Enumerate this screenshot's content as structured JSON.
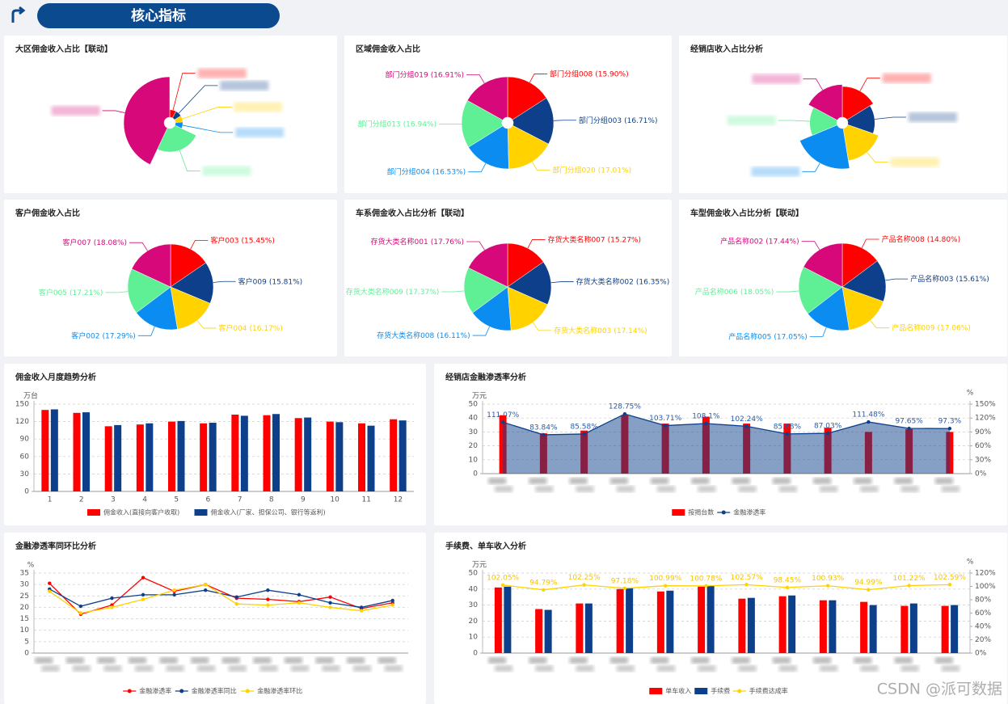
{
  "header": {
    "title": "核心指标"
  },
  "watermark": "CSDN @派可数据",
  "chart_data": [
    {
      "type": "pie",
      "title": "大区佣金收入占比【联动】",
      "rose": true,
      "donut": true,
      "categories": [
        null,
        null,
        null,
        null,
        null,
        null
      ],
      "values": [
        8,
        8,
        8,
        8,
        25,
        43
      ],
      "colors": [
        "#ff0000",
        "#0e3f8a",
        "#ffd200",
        "#0b8cf0",
        "#5ff095",
        "#d6087a"
      ]
    },
    {
      "type": "pie",
      "title": "区域佣金收入占比",
      "donut": true,
      "categories": [
        "部门分组008",
        "部门分组003",
        "部门分组020",
        "部门分组004",
        "部门分组013",
        "部门分组019"
      ],
      "values": [
        15.9,
        16.71,
        17.01,
        16.53,
        16.94,
        16.91
      ],
      "value_labels": [
        "(15.90%)",
        "(16.71%)",
        "(17.01%)",
        "(16.53%)",
        "(16.94%)",
        "(16.91%)"
      ],
      "colors": [
        "#ff0000",
        "#0e3f8a",
        "#ffd200",
        "#0b8cf0",
        "#5ff095",
        "#d6087a"
      ]
    },
    {
      "type": "pie",
      "title": "经销店收入占比分析",
      "rose": true,
      "donut": true,
      "categories": [
        null,
        null,
        null,
        null,
        null,
        null
      ],
      "values": [
        16,
        14,
        17,
        21,
        14,
        17
      ],
      "colors": [
        "#ff0000",
        "#0e3f8a",
        "#ffd200",
        "#0b8cf0",
        "#5ff095",
        "#d6087a"
      ]
    },
    {
      "type": "pie",
      "title": "客户佣金收入占比",
      "categories": [
        "客户003",
        "客户009",
        "客户004",
        "客户002",
        "客户005",
        "客户007"
      ],
      "values": [
        15.45,
        15.81,
        16.17,
        17.29,
        17.21,
        18.08
      ],
      "value_labels": [
        "(15.45%)",
        "(15.81%)",
        "(16.17%)",
        "(17.29%)",
        "(17.21%)",
        "(18.08%)"
      ],
      "colors": [
        "#ff0000",
        "#0e3f8a",
        "#ffd200",
        "#0b8cf0",
        "#5ff095",
        "#d6087a"
      ]
    },
    {
      "type": "pie",
      "title": "车系佣金收入占比分析【联动】",
      "categories": [
        "存货大类名称007",
        "存货大类名称002",
        "存货大类名称003",
        "存货大类名称008",
        "存货大类名称009",
        "存货大类名称001"
      ],
      "values": [
        15.27,
        16.35,
        17.14,
        16.11,
        17.37,
        17.76
      ],
      "value_labels": [
        "(15.27%)",
        "(16.35%)",
        "(17.14%)",
        "(16.11%)",
        "(17.37%)",
        "(17.76%)"
      ],
      "colors": [
        "#ff0000",
        "#0e3f8a",
        "#ffd200",
        "#0b8cf0",
        "#5ff095",
        "#d6087a"
      ]
    },
    {
      "type": "pie",
      "title": "车型佣金收入占比分析【联动】",
      "categories": [
        "产品名称008",
        "产品名称003",
        "产品名称009",
        "产品名称005",
        "产品名称006",
        "产品名称002"
      ],
      "values": [
        14.8,
        15.61,
        17.06,
        17.05,
        18.05,
        17.44
      ],
      "value_labels": [
        "(14.80%)",
        "(15.61%)",
        "(17.06%)",
        "(17.05%)",
        "(18.05%)",
        "(17.44%)"
      ],
      "colors": [
        "#ff0000",
        "#0e3f8a",
        "#ffd200",
        "#0b8cf0",
        "#5ff095",
        "#d6087a"
      ]
    },
    {
      "type": "bar",
      "title": "佣金收入月度趋势分析",
      "ylabel": "万台",
      "categories": [
        1,
        2,
        3,
        4,
        5,
        6,
        7,
        8,
        9,
        10,
        11,
        12
      ],
      "ylim": [
        0,
        150
      ],
      "yticks": [
        0,
        30,
        60,
        90,
        120,
        150
      ],
      "grid": true,
      "series": [
        {
          "name": "佣金收入(直接向客户收取)",
          "color": "#ff0000",
          "values": [
            140,
            135,
            112,
            115,
            120,
            117,
            132,
            131,
            126,
            120,
            117,
            124
          ]
        },
        {
          "name": "佣金收入(厂家、担保公司、银行等返利)",
          "color": "#0e3f8a",
          "values": [
            141,
            136,
            114,
            117,
            121,
            118,
            130,
            133,
            127,
            119,
            113,
            122
          ]
        }
      ]
    },
    {
      "type": "bar",
      "title": "经销店金融渗透率分析",
      "ylabel": "万元",
      "y2label": "%",
      "categories": [
        null,
        null,
        null,
        null,
        null,
        null,
        null,
        null,
        null,
        null,
        null,
        null
      ],
      "ylim": [
        0,
        50
      ],
      "yticks": [
        0,
        10,
        20,
        30,
        40,
        50
      ],
      "grid": true,
      "y2lim": [
        0,
        150
      ],
      "y2ticks": [
        {
          "value": 0,
          "label": "0%"
        },
        {
          "value": 30,
          "label": "30%"
        },
        {
          "value": 60,
          "label": "60%"
        },
        {
          "value": 90,
          "label": "90%"
        },
        {
          "value": 120,
          "label": "120%"
        },
        {
          "value": 150,
          "label": "150%"
        }
      ],
      "series": [
        {
          "name": "按揭台数",
          "color": "#ff0000",
          "values": [
            42,
            29,
            31,
            42,
            36,
            41,
            36,
            36,
            33,
            30,
            32,
            30
          ]
        },
        {
          "name": "金融渗透率",
          "type": "line",
          "area": true,
          "axis": "y2",
          "color": "#0e3f8a",
          "values": [
            111.07,
            83.84,
            85.58,
            128.75,
            103.71,
            108.1,
            102.24,
            85.68,
            87.03,
            111.48,
            97.65,
            97.3
          ],
          "value_labels": [
            "111.07%",
            "83.84%",
            "85.58%",
            "128.75%",
            "103.71%",
            "108.1%",
            "102.24%",
            "85.68%",
            "87.03%",
            "111.48%",
            "97.65%",
            "97.3%"
          ]
        }
      ]
    },
    {
      "type": "line",
      "title": "金融渗透率同环比分析",
      "ylabel": "%",
      "categories": [
        null,
        null,
        null,
        null,
        null,
        null,
        null,
        null,
        null,
        null,
        null,
        null
      ],
      "ylim": [
        0,
        35
      ],
      "yticks": [
        0,
        5,
        10,
        15,
        20,
        25,
        30,
        35
      ],
      "grid": true,
      "series": [
        {
          "name": "金融渗透率",
          "color": "#ff0000",
          "values": [
            30.5,
            17,
            21,
            33,
            27,
            30,
            24,
            23.5,
            22.5,
            24.5,
            19.5,
            22
          ]
        },
        {
          "name": "金融渗透率同比",
          "color": "#0e3f8a",
          "values": [
            28,
            20.5,
            24,
            25.5,
            25.5,
            27.5,
            24.5,
            27.5,
            25.5,
            22,
            20,
            23
          ]
        },
        {
          "name": "金融渗透率环比",
          "color": "#ffd200",
          "values": [
            27,
            17.5,
            20,
            23.5,
            27.5,
            30,
            21.5,
            21,
            22,
            20,
            18.5,
            21
          ]
        }
      ]
    },
    {
      "type": "bar",
      "title": "手续费、单车收入分析",
      "ylabel": "万元",
      "y2label": "%",
      "categories": [
        null,
        null,
        null,
        null,
        null,
        null,
        null,
        null,
        null,
        null,
        null,
        null
      ],
      "ylim": [
        0,
        50
      ],
      "yticks": [
        0,
        10,
        20,
        30,
        40,
        50
      ],
      "grid": true,
      "y2lim": [
        0,
        120
      ],
      "y2ticks": [
        {
          "value": 0,
          "label": "0%"
        },
        {
          "value": 20,
          "label": "20%"
        },
        {
          "value": 40,
          "label": "40%"
        },
        {
          "value": 60,
          "label": "60%"
        },
        {
          "value": 80,
          "label": "80%"
        },
        {
          "value": 100,
          "label": "100%"
        },
        {
          "value": 120,
          "label": "120%"
        }
      ],
      "series": [
        {
          "name": "单车收入",
          "color": "#ff0000",
          "values": [
            41,
            27.5,
            31,
            40,
            38.5,
            41.5,
            34,
            35.5,
            33,
            32,
            29.5,
            29.5
          ]
        },
        {
          "name": "手续费",
          "color": "#0e3f8a",
          "values": [
            41.5,
            27,
            31,
            40.5,
            39,
            42,
            34.5,
            36,
            33,
            30,
            31,
            30
          ]
        },
        {
          "name": "手续费达成率",
          "type": "line",
          "axis": "y2",
          "color": "#ffd200",
          "values": [
            102.05,
            94.79,
            102.25,
            97.18,
            100.99,
            100.78,
            102.57,
            98.45,
            100.93,
            94.99,
            101.22,
            102.59
          ],
          "value_labels": [
            "102.05%",
            "94.79%",
            "102.25%",
            "97.18%",
            "100.99%",
            "100.78%",
            "102.57%",
            "98.45%",
            "100.93%",
            "94.99%",
            "101.22%",
            "102.59%"
          ]
        }
      ]
    }
  ]
}
